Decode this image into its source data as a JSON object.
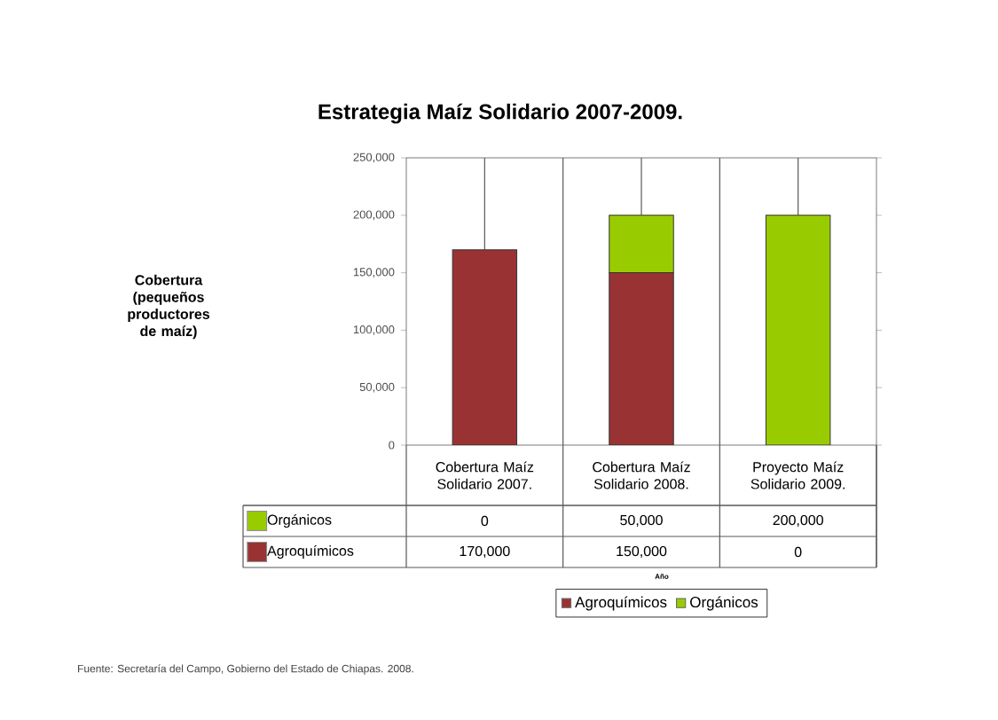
{
  "chart_data": {
    "type": "bar",
    "title": "Estrategia Maíz Solidario 2007-2009.",
    "categories": [
      "Cobertura Maíz Solidario 2007.",
      "Cobertura Maíz Solidario 2008.",
      "Proyecto Maíz Solidario 2009."
    ],
    "stacked": true,
    "series": [
      {
        "name": "Agroquímicos",
        "color": "#993333",
        "values": [
          170000,
          150000,
          0
        ],
        "value_labels": [
          "170,000",
          "150,000",
          "0"
        ]
      },
      {
        "name": "Orgánicos",
        "color": "#99cc00",
        "values": [
          0,
          50000,
          200000
        ],
        "value_labels": [
          "0",
          "50,000",
          "200,000"
        ],
        "errors": [
          [
            170000,
            250000
          ],
          [
            200000,
            250000
          ],
          [
            200000,
            250000
          ]
        ]
      }
    ],
    "ylim": [
      0,
      250000
    ],
    "yticks": [
      {
        "value": 0,
        "label": "0"
      },
      {
        "value": 50000,
        "label": "50,000"
      },
      {
        "value": 100000,
        "label": "100,000"
      },
      {
        "value": 150000,
        "label": "150,000"
      },
      {
        "value": 200000,
        "label": "200,000"
      },
      {
        "value": 250000,
        "label": "250,000"
      }
    ],
    "grid": "x",
    "legend": "bottom",
    "annotations": [
      "Cobertura (pequeños productores de maíz)",
      "Año",
      "Fuente: Secretaría del Campo, Gobierno del Estado de Chiapas. 2008."
    ]
  }
}
